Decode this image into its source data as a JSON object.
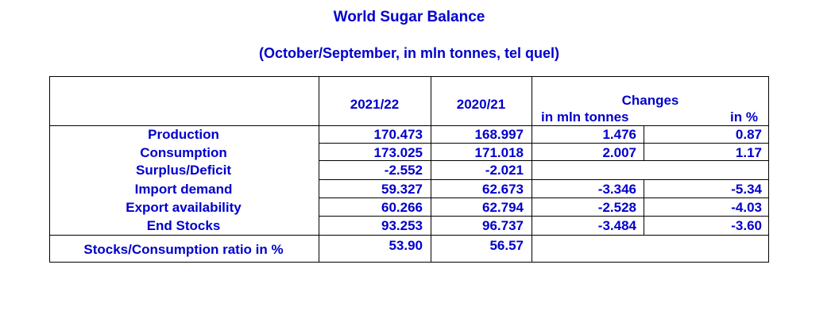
{
  "title": "World Sugar Balance",
  "subtitle": "(October/September, in mln tonnes, tel quel)",
  "header": {
    "col1": "2021/22",
    "col2": "2020/21",
    "changes": "Changes",
    "changes_abs": "in mln tonnes",
    "changes_pct": "in %"
  },
  "rows": [
    {
      "label": "Production",
      "y2122": "170.473",
      "y2021": "168.997",
      "chg": "1.476",
      "pct": "0.87"
    },
    {
      "label": "Consumption",
      "y2122": "173.025",
      "y2021": "171.018",
      "chg": "2.007",
      "pct": "1.17"
    },
    {
      "label": "Surplus/Deficit",
      "y2122": "-2.552",
      "y2021": "-2.021",
      "chg": "",
      "pct": ""
    },
    {
      "label": "Import demand",
      "y2122": "59.327",
      "y2021": "62.673",
      "chg": "-3.346",
      "pct": "-5.34"
    },
    {
      "label": "Export availability",
      "y2122": "60.266",
      "y2021": "62.794",
      "chg": "-2.528",
      "pct": "-4.03"
    },
    {
      "label": "End Stocks",
      "y2122": "93.253",
      "y2021": "96.737",
      "chg": "-3.484",
      "pct": "-3.60"
    },
    {
      "label": "Stocks/Consumption ratio in %",
      "y2122": "53.90",
      "y2021": "56.57",
      "chg": "",
      "pct": ""
    }
  ]
}
